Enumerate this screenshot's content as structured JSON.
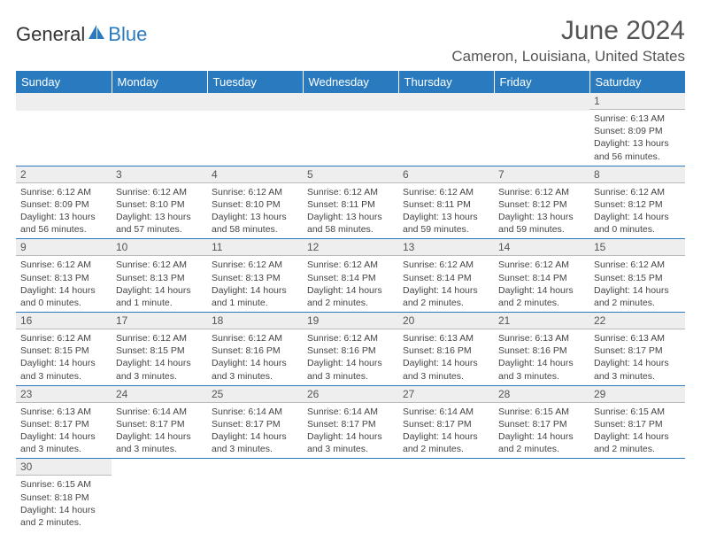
{
  "logo": {
    "part1": "General",
    "part2": "Blue"
  },
  "title": "June 2024",
  "location": "Cameron, Louisiana, United States",
  "headers": [
    "Sunday",
    "Monday",
    "Tuesday",
    "Wednesday",
    "Thursday",
    "Friday",
    "Saturday"
  ],
  "colors": {
    "header_bg": "#2a7ac0",
    "header_text": "#ffffff",
    "daynum_bg": "#eeeeee",
    "text": "#444444",
    "rule": "#2a7ac0"
  },
  "weeks": [
    [
      null,
      null,
      null,
      null,
      null,
      null,
      {
        "n": "1",
        "sr": "Sunrise: 6:13 AM",
        "ss": "Sunset: 8:09 PM",
        "dl": "Daylight: 13 hours and 56 minutes."
      }
    ],
    [
      {
        "n": "2",
        "sr": "Sunrise: 6:12 AM",
        "ss": "Sunset: 8:09 PM",
        "dl": "Daylight: 13 hours and 56 minutes."
      },
      {
        "n": "3",
        "sr": "Sunrise: 6:12 AM",
        "ss": "Sunset: 8:10 PM",
        "dl": "Daylight: 13 hours and 57 minutes."
      },
      {
        "n": "4",
        "sr": "Sunrise: 6:12 AM",
        "ss": "Sunset: 8:10 PM",
        "dl": "Daylight: 13 hours and 58 minutes."
      },
      {
        "n": "5",
        "sr": "Sunrise: 6:12 AM",
        "ss": "Sunset: 8:11 PM",
        "dl": "Daylight: 13 hours and 58 minutes."
      },
      {
        "n": "6",
        "sr": "Sunrise: 6:12 AM",
        "ss": "Sunset: 8:11 PM",
        "dl": "Daylight: 13 hours and 59 minutes."
      },
      {
        "n": "7",
        "sr": "Sunrise: 6:12 AM",
        "ss": "Sunset: 8:12 PM",
        "dl": "Daylight: 13 hours and 59 minutes."
      },
      {
        "n": "8",
        "sr": "Sunrise: 6:12 AM",
        "ss": "Sunset: 8:12 PM",
        "dl": "Daylight: 14 hours and 0 minutes."
      }
    ],
    [
      {
        "n": "9",
        "sr": "Sunrise: 6:12 AM",
        "ss": "Sunset: 8:13 PM",
        "dl": "Daylight: 14 hours and 0 minutes."
      },
      {
        "n": "10",
        "sr": "Sunrise: 6:12 AM",
        "ss": "Sunset: 8:13 PM",
        "dl": "Daylight: 14 hours and 1 minute."
      },
      {
        "n": "11",
        "sr": "Sunrise: 6:12 AM",
        "ss": "Sunset: 8:13 PM",
        "dl": "Daylight: 14 hours and 1 minute."
      },
      {
        "n": "12",
        "sr": "Sunrise: 6:12 AM",
        "ss": "Sunset: 8:14 PM",
        "dl": "Daylight: 14 hours and 2 minutes."
      },
      {
        "n": "13",
        "sr": "Sunrise: 6:12 AM",
        "ss": "Sunset: 8:14 PM",
        "dl": "Daylight: 14 hours and 2 minutes."
      },
      {
        "n": "14",
        "sr": "Sunrise: 6:12 AM",
        "ss": "Sunset: 8:14 PM",
        "dl": "Daylight: 14 hours and 2 minutes."
      },
      {
        "n": "15",
        "sr": "Sunrise: 6:12 AM",
        "ss": "Sunset: 8:15 PM",
        "dl": "Daylight: 14 hours and 2 minutes."
      }
    ],
    [
      {
        "n": "16",
        "sr": "Sunrise: 6:12 AM",
        "ss": "Sunset: 8:15 PM",
        "dl": "Daylight: 14 hours and 3 minutes."
      },
      {
        "n": "17",
        "sr": "Sunrise: 6:12 AM",
        "ss": "Sunset: 8:15 PM",
        "dl": "Daylight: 14 hours and 3 minutes."
      },
      {
        "n": "18",
        "sr": "Sunrise: 6:12 AM",
        "ss": "Sunset: 8:16 PM",
        "dl": "Daylight: 14 hours and 3 minutes."
      },
      {
        "n": "19",
        "sr": "Sunrise: 6:12 AM",
        "ss": "Sunset: 8:16 PM",
        "dl": "Daylight: 14 hours and 3 minutes."
      },
      {
        "n": "20",
        "sr": "Sunrise: 6:13 AM",
        "ss": "Sunset: 8:16 PM",
        "dl": "Daylight: 14 hours and 3 minutes."
      },
      {
        "n": "21",
        "sr": "Sunrise: 6:13 AM",
        "ss": "Sunset: 8:16 PM",
        "dl": "Daylight: 14 hours and 3 minutes."
      },
      {
        "n": "22",
        "sr": "Sunrise: 6:13 AM",
        "ss": "Sunset: 8:17 PM",
        "dl": "Daylight: 14 hours and 3 minutes."
      }
    ],
    [
      {
        "n": "23",
        "sr": "Sunrise: 6:13 AM",
        "ss": "Sunset: 8:17 PM",
        "dl": "Daylight: 14 hours and 3 minutes."
      },
      {
        "n": "24",
        "sr": "Sunrise: 6:14 AM",
        "ss": "Sunset: 8:17 PM",
        "dl": "Daylight: 14 hours and 3 minutes."
      },
      {
        "n": "25",
        "sr": "Sunrise: 6:14 AM",
        "ss": "Sunset: 8:17 PM",
        "dl": "Daylight: 14 hours and 3 minutes."
      },
      {
        "n": "26",
        "sr": "Sunrise: 6:14 AM",
        "ss": "Sunset: 8:17 PM",
        "dl": "Daylight: 14 hours and 3 minutes."
      },
      {
        "n": "27",
        "sr": "Sunrise: 6:14 AM",
        "ss": "Sunset: 8:17 PM",
        "dl": "Daylight: 14 hours and 2 minutes."
      },
      {
        "n": "28",
        "sr": "Sunrise: 6:15 AM",
        "ss": "Sunset: 8:17 PM",
        "dl": "Daylight: 14 hours and 2 minutes."
      },
      {
        "n": "29",
        "sr": "Sunrise: 6:15 AM",
        "ss": "Sunset: 8:17 PM",
        "dl": "Daylight: 14 hours and 2 minutes."
      }
    ],
    [
      {
        "n": "30",
        "sr": "Sunrise: 6:15 AM",
        "ss": "Sunset: 8:18 PM",
        "dl": "Daylight: 14 hours and 2 minutes."
      },
      null,
      null,
      null,
      null,
      null,
      null
    ]
  ]
}
